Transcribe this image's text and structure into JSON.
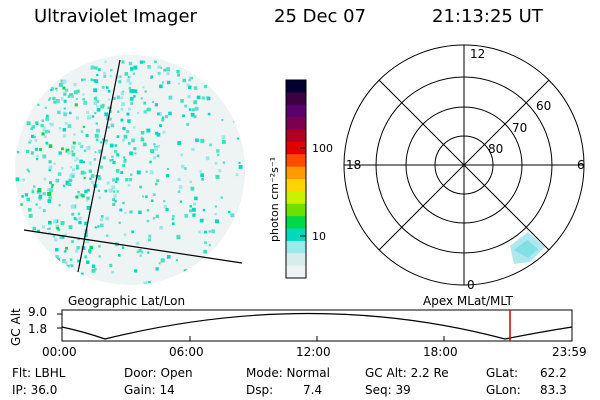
{
  "header": {
    "instrument": "Ultraviolet Imager",
    "date": "25 Dec 07",
    "time": "21:13:25 UT"
  },
  "colorbar": {
    "unit_label": "photon cm⁻²s⁻¹",
    "ticks": [
      "100",
      "10"
    ],
    "colors": [
      "#000033",
      "#3d0040",
      "#5a006a",
      "#7a0050",
      "#b00020",
      "#e00000",
      "#ff4a00",
      "#ff9a00",
      "#ffd400",
      "#c8f200",
      "#6ee000",
      "#00d84a",
      "#00d8c0",
      "#9de8e8",
      "#d8ecec",
      "#eef3f3"
    ]
  },
  "polar": {
    "mlt_labels": [
      "12",
      "18",
      "6",
      "0"
    ],
    "lat_labels": [
      "60",
      "70",
      "80"
    ]
  },
  "panel_labels": {
    "left": "Geographic Lat/Lon",
    "right": "Apex MLat/MLT"
  },
  "altitude_plot": {
    "ylabel": "GC Alt",
    "yticks": [
      "9.0",
      "1.8"
    ],
    "xticks": [
      "00:00",
      "06:00",
      "12:00",
      "18:00",
      "23:59"
    ],
    "marker_color": "#cc0000"
  },
  "info": {
    "flt": "Flt: LBHL",
    "ip": "IP: 36.0",
    "door": "Door: Open",
    "gain": "Gain: 14",
    "mode": "Mode: Normal",
    "dsp_label": "Dsp:",
    "dsp_value": "7.4",
    "gc_alt": "GC Alt: 2.2 Re",
    "seq": "Seq: 39",
    "glat_label": "GLat:",
    "glat_value": "62.2",
    "glon_label": "GLon:",
    "glon_value": "83.3"
  }
}
